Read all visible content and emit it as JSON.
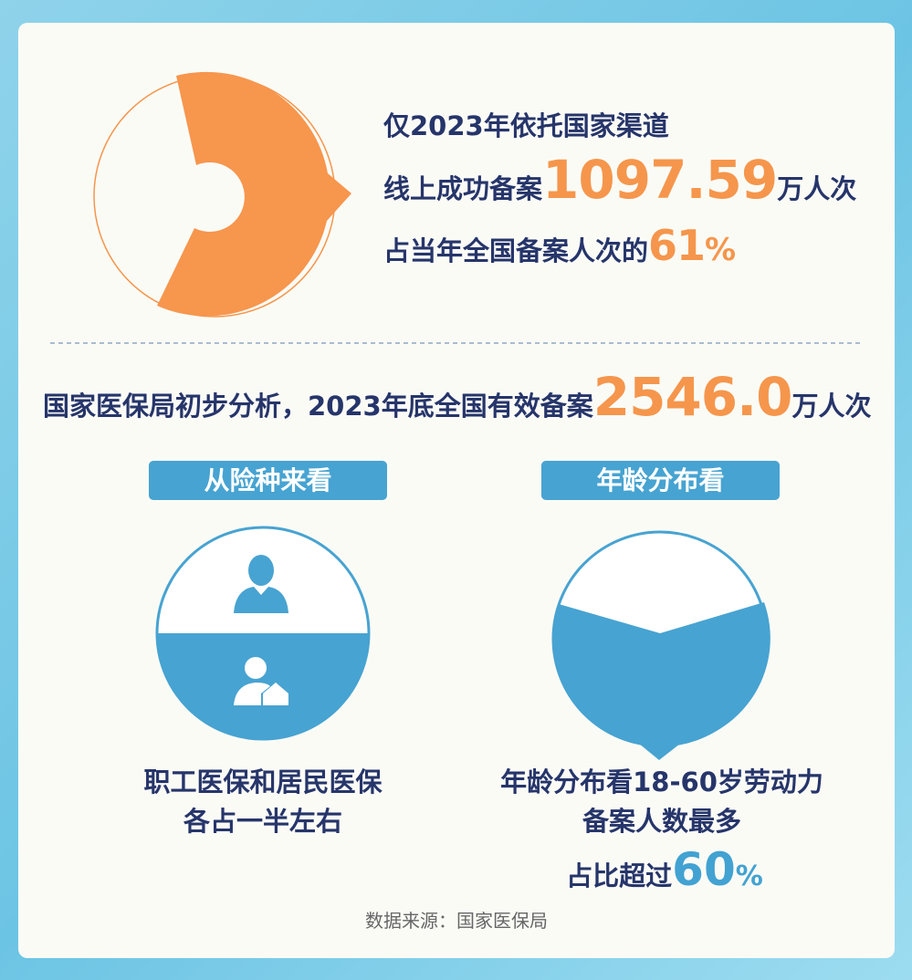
{
  "top": {
    "line1": "仅2023年依托国家渠道",
    "line2_prefix": "线上成功备案",
    "line2_number": "1097.59",
    "line2_unit": "万人次",
    "line3_prefix": "占当年全国备案人次的",
    "line3_number": "61",
    "line3_unit": "%"
  },
  "summary": {
    "prefix": "国家医保局初步分析，2023年底全国有效备案",
    "number": "2546.0",
    "unit": "万人次"
  },
  "left": {
    "tag": "从险种来看",
    "line1": "职工医保和居民医保",
    "line2": "各占一半左右"
  },
  "right": {
    "tag": "年龄分布看",
    "line1": "年龄分布看18-60岁劳动力",
    "line2": "备案人数最多",
    "line3_prefix": "占比超过",
    "line3_number": "60",
    "line3_unit": "%"
  },
  "source": "数据来源：国家医保局"
}
